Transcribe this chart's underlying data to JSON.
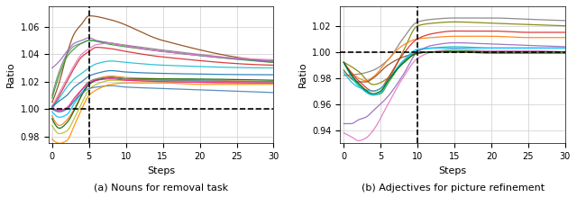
{
  "subplot_a": {
    "title": "(a) Nouns for removal task",
    "vline_x": 5,
    "hline_y": 1.0,
    "ylim": [
      0.975,
      1.075
    ],
    "xlim": [
      -0.5,
      30
    ],
    "yticks": [
      0.98,
      1.0,
      1.02,
      1.04,
      1.06
    ],
    "xticks": [
      0,
      5,
      10,
      15,
      20,
      25,
      30
    ],
    "xlabel": "Steps",
    "ylabel": "Ratio",
    "lines": [
      {
        "color": "#8B4513",
        "pts_x": [
          0,
          1,
          2,
          3,
          4,
          5,
          8,
          15,
          30
        ],
        "pts_y": [
          1.005,
          1.02,
          1.04,
          1.055,
          1.062,
          1.068,
          1.065,
          1.05,
          1.035
        ]
      },
      {
        "color": "#808080",
        "pts_x": [
          0,
          1,
          2,
          3,
          4,
          5,
          8,
          15,
          30
        ],
        "pts_y": [
          1.01,
          1.028,
          1.04,
          1.046,
          1.048,
          1.05,
          1.048,
          1.043,
          1.034
        ]
      },
      {
        "color": "#2ca02c",
        "pts_x": [
          0,
          1,
          2,
          3,
          4,
          5,
          8,
          15,
          30
        ],
        "pts_y": [
          1.008,
          1.025,
          1.038,
          1.044,
          1.048,
          1.05,
          1.047,
          1.042,
          1.034
        ]
      },
      {
        "color": "#9467bd",
        "pts_x": [
          0,
          1,
          2,
          3,
          4,
          5,
          6,
          8,
          15,
          30
        ],
        "pts_y": [
          1.03,
          1.035,
          1.042,
          1.048,
          1.05,
          1.052,
          1.05,
          1.048,
          1.042,
          1.035
        ]
      },
      {
        "color": "#d62728",
        "pts_x": [
          0,
          1,
          2,
          3,
          4,
          5,
          6,
          8,
          10,
          15,
          30
        ],
        "pts_y": [
          1.001,
          1.01,
          1.02,
          1.03,
          1.038,
          1.042,
          1.045,
          1.044,
          1.042,
          1.038,
          1.032
        ]
      },
      {
        "color": "#e377c2",
        "pts_x": [
          0,
          1,
          2,
          3,
          4,
          5,
          6,
          8,
          10,
          15,
          30
        ],
        "pts_y": [
          1.002,
          1.012,
          1.022,
          1.032,
          1.04,
          1.044,
          1.047,
          1.048,
          1.046,
          1.042,
          1.036
        ]
      },
      {
        "color": "#17becf",
        "pts_x": [
          0,
          1,
          2,
          3,
          4,
          5,
          6,
          8,
          10,
          15,
          30
        ],
        "pts_y": [
          1.0,
          1.008,
          1.016,
          1.022,
          1.026,
          1.03,
          1.033,
          1.035,
          1.034,
          1.032,
          1.03
        ]
      },
      {
        "color": "#1f77b4",
        "pts_x": [
          0,
          1,
          2,
          3,
          4,
          5,
          6,
          8,
          10,
          15,
          30
        ],
        "pts_y": [
          1.002,
          1.006,
          1.01,
          1.016,
          1.02,
          1.024,
          1.026,
          1.028,
          1.027,
          1.026,
          1.025
        ]
      },
      {
        "color": "#ff7f0e",
        "pts_x": [
          0,
          1,
          2,
          3,
          4,
          5,
          6,
          8,
          10,
          15,
          30
        ],
        "pts_y": [
          0.995,
          0.988,
          0.992,
          1.0,
          1.01,
          1.018,
          1.022,
          1.024,
          1.023,
          1.022,
          1.02
        ]
      },
      {
        "color": "#00BFFF",
        "pts_x": [
          0,
          1,
          2,
          3,
          4,
          5,
          6,
          8,
          10,
          15,
          30
        ],
        "pts_y": [
          0.998,
          0.994,
          0.996,
          1.004,
          1.012,
          1.018,
          1.021,
          1.023,
          1.022,
          1.021,
          1.02
        ]
      },
      {
        "color": "#006400",
        "pts_x": [
          0,
          1,
          2,
          3,
          4,
          5,
          6,
          8,
          10,
          15,
          30
        ],
        "pts_y": [
          0.993,
          0.986,
          0.99,
          0.999,
          1.01,
          1.018,
          1.021,
          1.023,
          1.022,
          1.022,
          1.021
        ]
      },
      {
        "color": "#bcbd22",
        "pts_x": [
          0,
          1,
          2,
          3,
          4,
          5,
          6,
          8,
          10,
          15,
          30
        ],
        "pts_y": [
          0.988,
          0.982,
          0.984,
          0.993,
          1.004,
          1.014,
          1.018,
          1.021,
          1.021,
          1.02,
          1.019
        ]
      },
      {
        "color": "#7f7f7f",
        "pts_x": [
          0,
          1,
          2,
          3,
          4,
          5,
          6,
          8,
          10,
          15,
          30
        ],
        "pts_y": [
          1.0,
          0.998,
          1.0,
          1.006,
          1.014,
          1.02,
          1.022,
          1.023,
          1.022,
          1.021,
          1.02
        ]
      },
      {
        "color": "#FF1493",
        "pts_x": [
          0,
          1,
          2,
          3,
          4,
          5,
          6,
          8,
          10,
          15,
          30
        ],
        "pts_y": [
          1.001,
          0.999,
          1.001,
          1.008,
          1.014,
          1.019,
          1.021,
          1.022,
          1.021,
          1.02,
          1.019
        ]
      },
      {
        "color": "#4682B4",
        "pts_x": [
          0,
          1,
          2,
          3,
          4,
          5,
          6,
          8,
          10,
          15,
          20,
          25,
          30
        ],
        "pts_y": [
          1.001,
          0.998,
          1.0,
          1.006,
          1.011,
          1.015,
          1.016,
          1.017,
          1.016,
          1.015,
          1.014,
          1.013,
          1.012
        ]
      },
      {
        "color": "#FF8C00",
        "pts_x": [
          0,
          1,
          2,
          3,
          4,
          5,
          6,
          8,
          10,
          15,
          20,
          25,
          30
        ],
        "pts_y": [
          0.978,
          0.975,
          0.977,
          0.988,
          1.0,
          1.01,
          1.014,
          1.018,
          1.019,
          1.019,
          1.018,
          1.018,
          1.018
        ]
      }
    ]
  },
  "subplot_b": {
    "title": "(b) Adjectives for picture refinement",
    "vline_x": 10,
    "hline_y": 1.0,
    "ylim": [
      0.93,
      1.035
    ],
    "xlim": [
      -0.5,
      30
    ],
    "yticks": [
      0.94,
      0.96,
      0.98,
      1.0,
      1.02
    ],
    "xticks": [
      0,
      5,
      10,
      15,
      20,
      25,
      30
    ],
    "xlabel": "Steps",
    "ylabel": "Ratio",
    "lines": [
      {
        "color": "#808080",
        "pts_x": [
          0,
          2,
          4,
          6,
          8,
          10,
          12,
          15,
          20,
          25,
          30
        ],
        "pts_y": [
          0.982,
          0.983,
          0.986,
          0.994,
          1.01,
          1.023,
          1.025,
          1.026,
          1.026,
          1.025,
          1.024
        ]
      },
      {
        "color": "#808000",
        "pts_x": [
          0,
          2,
          4,
          6,
          8,
          10,
          12,
          15,
          20,
          25,
          30
        ],
        "pts_y": [
          0.992,
          0.985,
          0.975,
          0.98,
          1.0,
          1.02,
          1.022,
          1.023,
          1.022,
          1.021,
          1.02
        ]
      },
      {
        "color": "#ff7f0e",
        "pts_x": [
          0,
          2,
          3,
          4,
          6,
          8,
          10,
          12,
          15,
          20,
          25,
          30
        ],
        "pts_y": [
          0.992,
          0.98,
          0.978,
          0.981,
          0.994,
          1.005,
          1.01,
          1.011,
          1.012,
          1.012,
          1.011,
          1.011
        ]
      },
      {
        "color": "#d62728",
        "pts_x": [
          0,
          2,
          4,
          5,
          6,
          8,
          10,
          12,
          15,
          20,
          25,
          30
        ],
        "pts_y": [
          0.992,
          0.978,
          0.97,
          0.972,
          0.98,
          0.998,
          1.01,
          1.014,
          1.016,
          1.016,
          1.015,
          1.015
        ]
      },
      {
        "color": "#8B4513",
        "pts_x": [
          0,
          2,
          3,
          4,
          6,
          8,
          10,
          12,
          15,
          20,
          25,
          30
        ],
        "pts_y": [
          0.986,
          0.977,
          0.977,
          0.98,
          0.99,
          0.996,
          0.999,
          1.0,
          1.0,
          0.999,
          0.999,
          0.999
        ]
      },
      {
        "color": "#17becf",
        "pts_x": [
          0,
          2,
          4,
          5,
          6,
          8,
          10,
          12,
          15,
          20,
          25,
          30
        ],
        "pts_y": [
          0.984,
          0.973,
          0.97,
          0.972,
          0.978,
          0.992,
          1.001,
          1.003,
          1.004,
          1.003,
          1.003,
          1.003
        ]
      },
      {
        "color": "#2ca02c",
        "pts_x": [
          0,
          2,
          4,
          5,
          6,
          8,
          10,
          12,
          15,
          20,
          25,
          30
        ],
        "pts_y": [
          0.992,
          0.975,
          0.967,
          0.968,
          0.976,
          0.992,
          0.999,
          1.0,
          1.001,
          1.0,
          1.0,
          1.0
        ]
      },
      {
        "color": "#00BFFF",
        "pts_x": [
          0,
          2,
          4,
          5,
          6,
          8,
          10,
          12,
          15,
          20,
          25,
          30
        ],
        "pts_y": [
          0.992,
          0.974,
          0.967,
          0.969,
          0.978,
          0.993,
          1.002,
          1.003,
          1.003,
          1.003,
          1.003,
          1.003
        ]
      },
      {
        "color": "#9467bd",
        "pts_x": [
          0,
          1,
          2,
          3,
          4,
          6,
          8,
          10,
          12,
          15,
          20,
          25,
          30
        ],
        "pts_y": [
          0.945,
          0.945,
          0.948,
          0.95,
          0.955,
          0.966,
          0.982,
          1.0,
          1.005,
          1.007,
          1.006,
          1.005,
          1.004
        ]
      },
      {
        "color": "#e377c2",
        "pts_x": [
          0,
          1,
          2,
          3,
          4,
          6,
          8,
          10,
          12,
          15,
          20,
          25,
          30
        ],
        "pts_y": [
          0.938,
          0.935,
          0.932,
          0.934,
          0.94,
          0.96,
          0.98,
          0.995,
          1.0,
          1.002,
          1.001,
          1.001,
          1.0
        ]
      },
      {
        "color": "#006400",
        "pts_x": [
          0,
          2,
          4,
          5,
          6,
          8,
          10,
          12,
          15,
          20,
          25,
          30
        ],
        "pts_y": [
          0.992,
          0.976,
          0.968,
          0.97,
          0.978,
          0.991,
          0.999,
          1.0,
          1.0,
          1.0,
          1.0,
          1.0
        ]
      }
    ]
  }
}
